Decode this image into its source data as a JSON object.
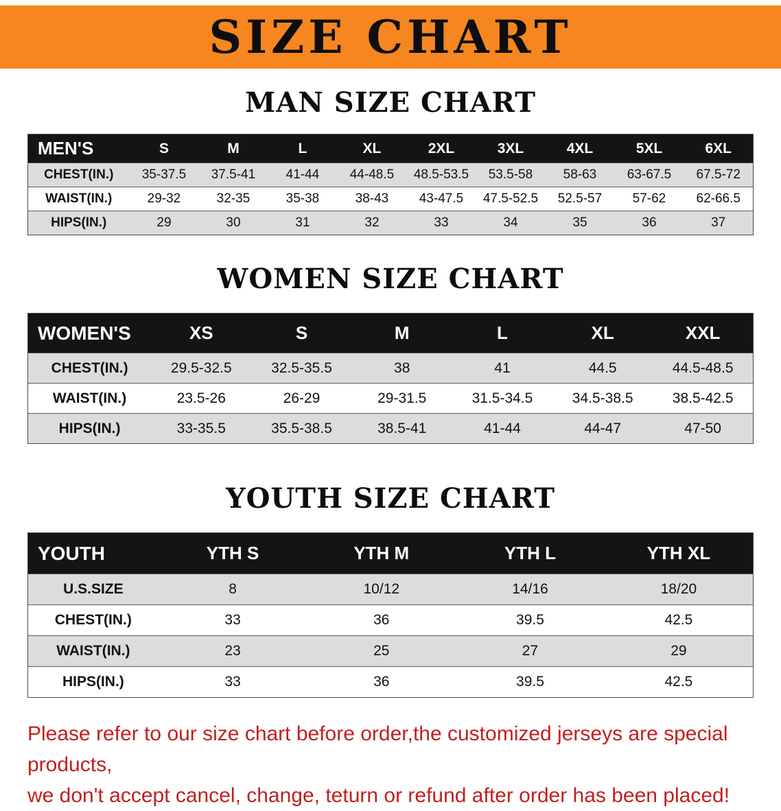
{
  "banner": {
    "title": "SIZE CHART"
  },
  "colors": {
    "banner_orange": "#F6861F",
    "table_header_black": "#141414",
    "row_gray": "#dcdcdc",
    "footer_red": "#c21f1f"
  },
  "chart_data": [
    {
      "type": "table",
      "title": "MAN SIZE CHART",
      "corner": "MEN'S",
      "columns": [
        "S",
        "M",
        "L",
        "XL",
        "2XL",
        "3XL",
        "4XL",
        "5XL",
        "6XL"
      ],
      "rows": [
        {
          "label": "CHEST(IN.)",
          "values": [
            "35-37.5",
            "37.5-41",
            "41-44",
            "44-48.5",
            "48.5-53.5",
            "53.5-58",
            "58-63",
            "63-67.5",
            "67.5-72"
          ]
        },
        {
          "label": "WAIST(IN.)",
          "values": [
            "29-32",
            "32-35",
            "35-38",
            "38-43",
            "43-47.5",
            "47.5-52.5",
            "52.5-57",
            "57-62",
            "62-66.5"
          ]
        },
        {
          "label": "HIPS(IN.)",
          "values": [
            "29",
            "30",
            "31",
            "32",
            "33",
            "34",
            "35",
            "36",
            "37"
          ]
        }
      ]
    },
    {
      "type": "table",
      "title": "WOMEN SIZE CHART",
      "corner": "WOMEN'S",
      "columns": [
        "XS",
        "S",
        "M",
        "L",
        "XL",
        "XXL"
      ],
      "rows": [
        {
          "label": "CHEST(IN.)",
          "values": [
            "29.5-32.5",
            "32.5-35.5",
            "38",
            "41",
            "44.5",
            "44.5-48.5"
          ]
        },
        {
          "label": "WAIST(IN.)",
          "values": [
            "23.5-26",
            "26-29",
            "29-31.5",
            "31.5-34.5",
            "34.5-38.5",
            "38.5-42.5"
          ]
        },
        {
          "label": "HIPS(IN.)",
          "values": [
            "33-35.5",
            "35.5-38.5",
            "38.5-41",
            "41-44",
            "44-47",
            "47-50"
          ]
        }
      ]
    },
    {
      "type": "table",
      "title": "YOUTH SIZE CHART",
      "corner": "YOUTH",
      "columns": [
        "YTH S",
        "YTH M",
        "YTH L",
        "YTH XL"
      ],
      "rows": [
        {
          "label": "U.S.SIZE",
          "values": [
            "8",
            "10/12",
            "14/16",
            "18/20"
          ]
        },
        {
          "label": "CHEST(IN.)",
          "values": [
            "33",
            "36",
            "39.5",
            "42.5"
          ]
        },
        {
          "label": "WAIST(IN.)",
          "values": [
            "23",
            "25",
            "27",
            "29"
          ]
        },
        {
          "label": "HIPS(IN.)",
          "values": [
            "33",
            "36",
            "39.5",
            "42.5"
          ]
        }
      ]
    }
  ],
  "footer": {
    "line1": "Please refer to our size chart before order,the customized jerseys are special products,",
    "line2": "we don't accept cancel, change, teturn or refund after order has been placed!"
  }
}
